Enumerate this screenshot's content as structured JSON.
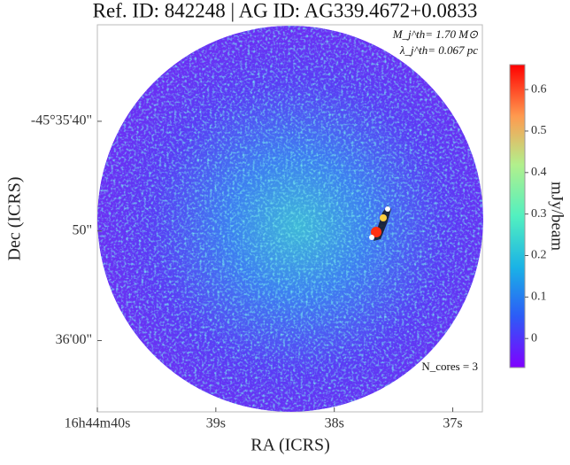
{
  "chart_data": {
    "type": "image",
    "title": "Ref. ID: 842248 | AG ID: AG339.4672+0.0833",
    "x_label": "RA (ICRS)",
    "y_label": "Dec (ICRS)",
    "annotations": [
      "M_j^th= 1.70 M⊙",
      "λ_j^th= 0.067 pc",
      "N_cores = 3"
    ],
    "xlim": [
      40,
      36.75
    ],
    "xticks": [
      {
        "value": 40,
        "label": "16h44m40s"
      },
      {
        "value": 39,
        "label": "39s"
      },
      {
        "value": 38,
        "label": "38s"
      },
      {
        "value": 37,
        "label": "37s"
      }
    ],
    "ylim": [
      66.5,
      31.2
    ],
    "yticks": [
      {
        "value": 40,
        "label": "-45°35'40\""
      },
      {
        "value": 50,
        "label": "50\""
      },
      {
        "value": 60,
        "label": "36'00\""
      }
    ],
    "colorbar": {
      "label": "mJy/beam",
      "lim": [
        -0.07,
        0.66
      ],
      "ticks": [
        0.0,
        0.1,
        0.2,
        0.3,
        0.4,
        0.5,
        0.6
      ]
    }
  }
}
